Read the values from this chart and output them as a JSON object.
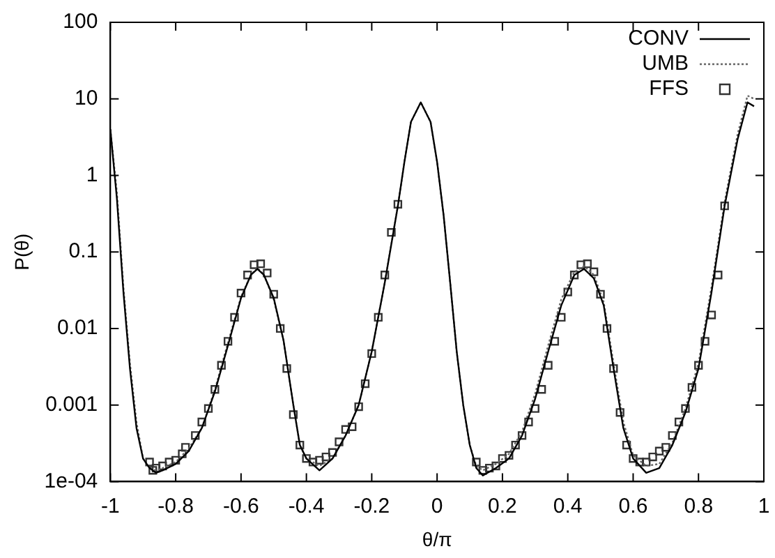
{
  "chart_data": {
    "type": "line",
    "xlabel": "θ/π",
    "ylabel": "P(θ)",
    "log": "y",
    "legend": "top right",
    "xlim": [
      -1,
      1
    ],
    "xticks": [
      -1,
      -0.8,
      -0.6,
      -0.4,
      -0.2,
      0,
      0.2,
      0.4,
      0.6,
      0.8,
      1
    ],
    "ylim": [
      0.0001,
      100
    ],
    "yticks": [
      {
        "value": 0.0001,
        "label": "1e-04"
      },
      0.001,
      0.01,
      0.1,
      1,
      10,
      100
    ],
    "series": [
      {
        "name": "CONV",
        "type": "line",
        "color": "#000000",
        "marker": "none",
        "line_style": "solid",
        "x": [
          -1,
          -0.98,
          -0.96,
          -0.94,
          -0.92,
          -0.9,
          -0.88,
          -0.86,
          -0.84,
          -0.8,
          -0.76,
          -0.72,
          -0.68,
          -0.64,
          -0.6,
          -0.57,
          -0.55,
          -0.53,
          -0.5,
          -0.47,
          -0.44,
          -0.42,
          -0.4,
          -0.36,
          -0.32,
          -0.28,
          -0.24,
          -0.2,
          -0.16,
          -0.12,
          -0.1,
          -0.08,
          -0.05,
          -0.02,
          0,
          0.02,
          0.04,
          0.06,
          0.08,
          0.1,
          0.12,
          0.14,
          0.18,
          0.22,
          0.26,
          0.3,
          0.34,
          0.38,
          0.42,
          0.45,
          0.48,
          0.51,
          0.54,
          0.57,
          0.6,
          0.64,
          0.68,
          0.72,
          0.76,
          0.8,
          0.84,
          0.88,
          0.92,
          0.95,
          0.97
        ],
        "values": [
          4,
          0.5,
          0.03,
          0.003,
          0.0005,
          0.0002,
          0.00015,
          0.00013,
          0.00014,
          0.00017,
          0.00025,
          0.0005,
          0.0015,
          0.006,
          0.025,
          0.05,
          0.06,
          0.05,
          0.025,
          0.007,
          0.001,
          0.0003,
          0.0002,
          0.00014,
          0.0002,
          0.0004,
          0.001,
          0.005,
          0.04,
          0.4,
          1.5,
          5,
          9,
          5,
          1.5,
          0.3,
          0.04,
          0.005,
          0.001,
          0.0003,
          0.00015,
          0.00012,
          0.00015,
          0.0002,
          0.0004,
          0.0012,
          0.005,
          0.02,
          0.05,
          0.06,
          0.045,
          0.02,
          0.003,
          0.0005,
          0.0002,
          0.00013,
          0.00015,
          0.0003,
          0.0008,
          0.003,
          0.03,
          0.4,
          3,
          9,
          8
        ]
      },
      {
        "name": "UMB",
        "type": "line",
        "color": "#666666",
        "marker": "none",
        "line_style": "dotted",
        "x": [
          -1,
          -0.98,
          -0.96,
          -0.94,
          -0.92,
          -0.9,
          -0.88,
          -0.86,
          -0.84,
          -0.8,
          -0.76,
          -0.72,
          -0.68,
          -0.64,
          -0.6,
          -0.57,
          -0.55,
          -0.53,
          -0.5,
          -0.47,
          -0.44,
          -0.42,
          -0.4,
          -0.36,
          -0.32,
          -0.28,
          -0.24,
          -0.2,
          -0.16,
          -0.12,
          -0.1,
          -0.08,
          -0.05,
          -0.02,
          0,
          0.02,
          0.04,
          0.06,
          0.08,
          0.1,
          0.12,
          0.14,
          0.18,
          0.22,
          0.26,
          0.3,
          0.34,
          0.38,
          0.42,
          0.45,
          0.48,
          0.51,
          0.54,
          0.57,
          0.6,
          0.64,
          0.68,
          0.72,
          0.76,
          0.8,
          0.84,
          0.88,
          0.92,
          0.95,
          0.97
        ],
        "values": [
          4,
          0.6,
          0.035,
          0.0035,
          0.0006,
          0.0002,
          0.00015,
          0.00014,
          0.00015,
          0.00018,
          0.00027,
          0.0005,
          0.0016,
          0.0065,
          0.026,
          0.05,
          0.062,
          0.05,
          0.024,
          0.007,
          0.001,
          0.0003,
          0.0002,
          0.00016,
          0.0002,
          0.0004,
          0.001,
          0.005,
          0.04,
          0.4,
          1.5,
          5,
          9,
          5,
          1.5,
          0.3,
          0.04,
          0.005,
          0.001,
          0.0003,
          0.00016,
          0.00014,
          0.00017,
          0.00023,
          0.00045,
          0.0014,
          0.006,
          0.024,
          0.055,
          0.065,
          0.05,
          0.022,
          0.0035,
          0.0006,
          0.00022,
          0.00016,
          0.00017,
          0.00032,
          0.0009,
          0.0035,
          0.035,
          0.45,
          3.5,
          11,
          10
        ]
      },
      {
        "name": "FFS",
        "type": "scatter",
        "color": "#333333",
        "marker": "square",
        "x": [
          -0.88,
          -0.87,
          -0.86,
          -0.84,
          -0.82,
          -0.8,
          -0.78,
          -0.77,
          -0.74,
          -0.72,
          -0.7,
          -0.68,
          -0.66,
          -0.64,
          -0.62,
          -0.6,
          -0.58,
          -0.56,
          -0.54,
          -0.52,
          -0.5,
          -0.48,
          -0.46,
          -0.44,
          -0.42,
          -0.4,
          -0.38,
          -0.36,
          -0.34,
          -0.32,
          -0.3,
          -0.28,
          -0.26,
          -0.24,
          -0.22,
          -0.2,
          -0.18,
          -0.16,
          -0.14,
          -0.12,
          0.12,
          0.14,
          0.16,
          0.18,
          0.2,
          0.22,
          0.24,
          0.26,
          0.28,
          0.3,
          0.32,
          0.34,
          0.36,
          0.38,
          0.4,
          0.42,
          0.44,
          0.46,
          0.48,
          0.5,
          0.52,
          0.54,
          0.56,
          0.58,
          0.6,
          0.62,
          0.64,
          0.66,
          0.68,
          0.7,
          0.72,
          0.74,
          0.76,
          0.78,
          0.8,
          0.82,
          0.84,
          0.86,
          0.88
        ],
        "values": [
          0.00018,
          0.00014,
          0.00015,
          0.00016,
          0.00018,
          0.00019,
          0.00023,
          0.00028,
          0.0004,
          0.0006,
          0.0009,
          0.0016,
          0.0033,
          0.0068,
          0.014,
          0.029,
          0.05,
          0.068,
          0.07,
          0.053,
          0.028,
          0.01,
          0.003,
          0.00075,
          0.0003,
          0.0002,
          0.00018,
          0.00019,
          0.00021,
          0.00024,
          0.00033,
          0.00048,
          0.00052,
          0.00095,
          0.0019,
          0.0047,
          0.014,
          0.05,
          0.18,
          0.42,
          0.00018,
          0.00014,
          0.00015,
          0.00016,
          0.0002,
          0.00022,
          0.0003,
          0.0004,
          0.0006,
          0.0009,
          0.0016,
          0.0033,
          0.0068,
          0.014,
          0.03,
          0.05,
          0.068,
          0.07,
          0.055,
          0.028,
          0.01,
          0.003,
          0.0008,
          0.0003,
          0.0002,
          0.00018,
          0.00018,
          0.00021,
          0.00025,
          0.00028,
          0.0004,
          0.0006,
          0.0009,
          0.0017,
          0.0033,
          0.0068,
          0.015,
          0.05,
          0.4
        ]
      }
    ]
  }
}
